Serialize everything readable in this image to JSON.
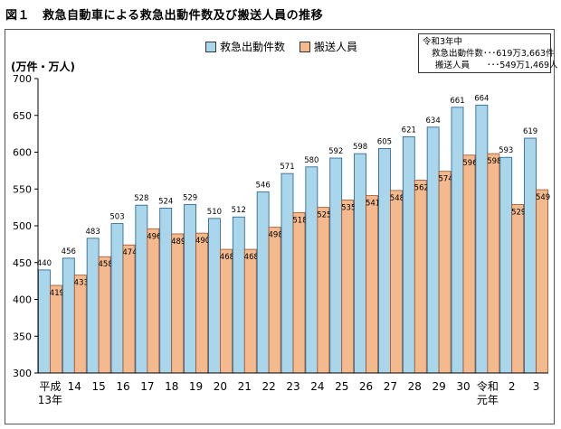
{
  "title": {
    "number": "図１",
    "text": "救急自動車による救急出動件数及び搬送人員の推移"
  },
  "legend": [
    {
      "label": "救急出動件数",
      "color": "#a9d6ea"
    },
    {
      "label": "搬送人員",
      "color": "#f4b98c"
    }
  ],
  "infobox": {
    "year": "令和3年中",
    "line1": "救急出動件数･･･619万3,663件",
    "line2": "搬送人員　　･･･549万1,469人"
  },
  "unit_label": "(万件・万人)",
  "chart_data": {
    "type": "bar",
    "title": "救急自動車による救急出動件数及び搬送人員の推移",
    "ylabel": "(万件・万人)",
    "ylim": [
      300,
      700
    ],
    "yticks": [
      300,
      350,
      400,
      450,
      500,
      550,
      600,
      650,
      700
    ],
    "grid": false,
    "legend_position": "top-center",
    "categories": [
      [
        "平成",
        "13年"
      ],
      [
        "14"
      ],
      [
        "15"
      ],
      [
        "16"
      ],
      [
        "17"
      ],
      [
        "18"
      ],
      [
        "19"
      ],
      [
        "20"
      ],
      [
        "21"
      ],
      [
        "22"
      ],
      [
        "23"
      ],
      [
        "24"
      ],
      [
        "25"
      ],
      [
        "26"
      ],
      [
        "27"
      ],
      [
        "28"
      ],
      [
        "29"
      ],
      [
        "30"
      ],
      [
        "令和",
        "元年"
      ],
      [
        "2"
      ],
      [
        "3"
      ]
    ],
    "series": [
      {
        "name": "救急出動件数",
        "color": "#a9d6ea",
        "values": [
          440,
          456,
          483,
          503,
          528,
          524,
          529,
          510,
          512,
          546,
          571,
          580,
          592,
          598,
          605,
          621,
          634,
          661,
          664,
          593,
          619
        ]
      },
      {
        "name": "搬送人員",
        "color": "#f4b98c",
        "values": [
          419,
          433,
          458,
          474,
          496,
          489,
          490,
          468,
          468,
          498,
          518,
          525,
          535,
          541,
          548,
          562,
          574,
          596,
          598,
          529,
          549
        ]
      }
    ]
  }
}
